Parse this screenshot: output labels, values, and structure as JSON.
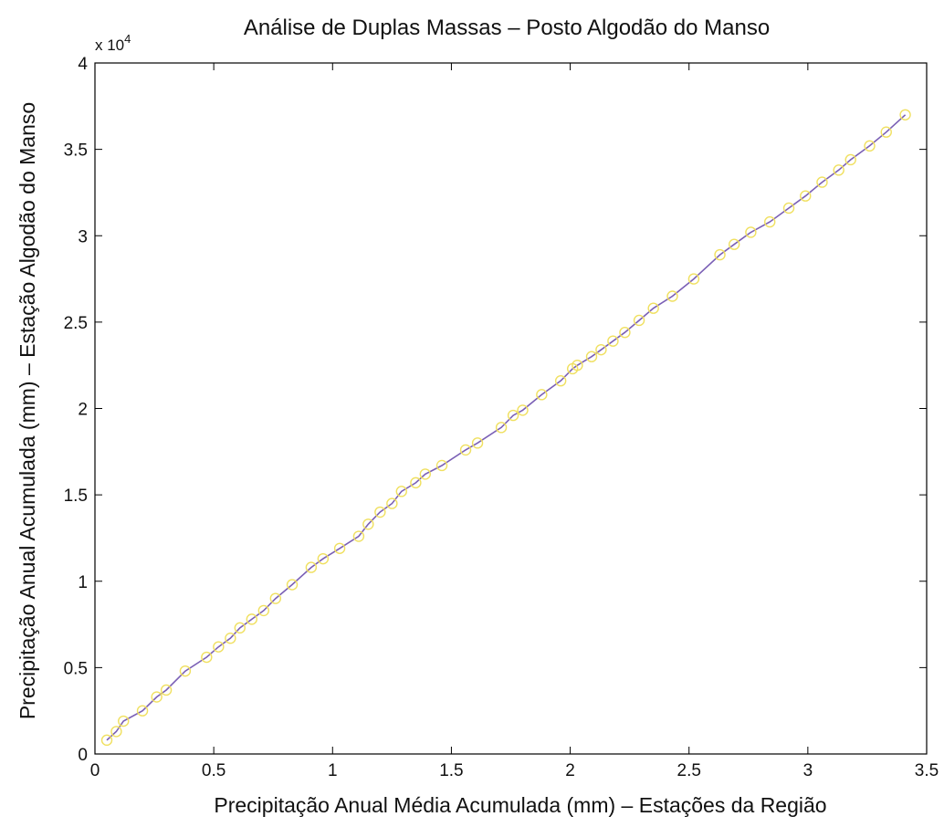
{
  "chart_data": {
    "type": "line",
    "title": "Análise de Duplas Massas – Posto Algodão do Manso",
    "xlabel": "Precipitação Anual Média Acumulada (mm) – Estações da Região",
    "ylabel": "Precipitação Anual Acumulada (mm) – Estação Algodão do Manso",
    "xlim": [
      0,
      3.5
    ],
    "ylim": [
      0,
      40000
    ],
    "y_exponent_label": "x 10",
    "y_exponent_power": "4",
    "x_ticks": [
      0,
      0.5,
      1,
      1.5,
      2,
      2.5,
      3,
      3.5
    ],
    "x_tick_labels": [
      "0",
      "0.5",
      "1",
      "1.5",
      "2",
      "2.5",
      "3",
      "3.5"
    ],
    "y_ticks": [
      0,
      5000,
      10000,
      15000,
      20000,
      25000,
      30000,
      35000,
      40000
    ],
    "y_tick_labels": [
      "0",
      "0.5",
      "1",
      "1.5",
      "2",
      "2.5",
      "3",
      "3.5",
      "4"
    ],
    "grid": false,
    "line_color": "#7a5fb5",
    "marker_color": "#f0e060",
    "series": [
      {
        "x": [
          0.05,
          0.09,
          0.12,
          0.2,
          0.26,
          0.3,
          0.38,
          0.47,
          0.52,
          0.57,
          0.61,
          0.66,
          0.71,
          0.76,
          0.83,
          0.91,
          0.96,
          1.03,
          1.11,
          1.15,
          1.2,
          1.25,
          1.29,
          1.35,
          1.39,
          1.46,
          1.56,
          1.61,
          1.71,
          1.76,
          1.8,
          1.88,
          1.96,
          2.01,
          2.03,
          2.09,
          2.13,
          2.18,
          2.23,
          2.29,
          2.35,
          2.43,
          2.52,
          2.63,
          2.69,
          2.76,
          2.84,
          2.92,
          2.99,
          3.06,
          3.13,
          3.18,
          3.26,
          3.33,
          3.41
        ],
        "y": [
          800,
          1300,
          1900,
          2500,
          3300,
          3700,
          4800,
          5600,
          6200,
          6700,
          7300,
          7800,
          8300,
          9000,
          9800,
          10800,
          11300,
          11900,
          12600,
          13300,
          14000,
          14500,
          15200,
          15700,
          16200,
          16700,
          17600,
          18000,
          18900,
          19600,
          19900,
          20800,
          21600,
          22300,
          22500,
          23000,
          23400,
          23900,
          24400,
          25100,
          25800,
          26500,
          27500,
          28900,
          29500,
          30200,
          30800,
          31600,
          32300,
          33100,
          33800,
          34400,
          35200,
          36000,
          37000
        ]
      }
    ]
  }
}
